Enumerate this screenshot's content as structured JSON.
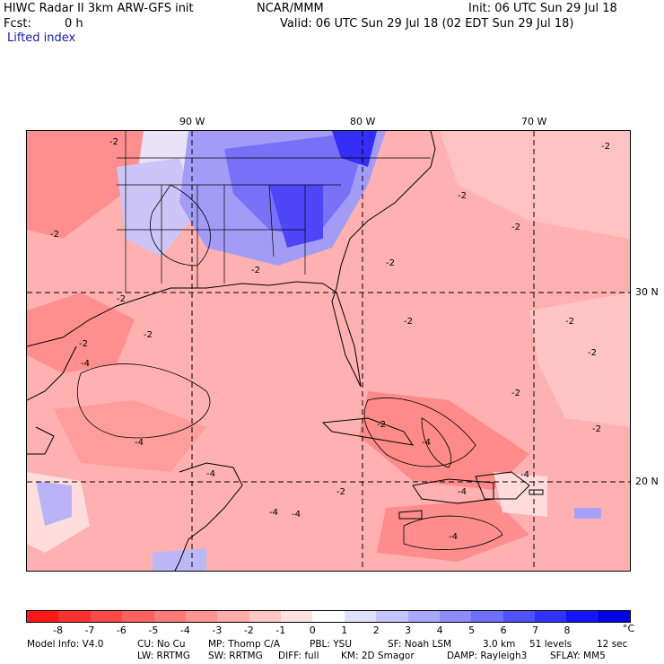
{
  "header": {
    "title": "HIWC Radar II 3km ARW-GFS init",
    "center": "NCAR/MMM",
    "init": "Init: 06 UTC Sun 29 Jul 18",
    "fcst_label": "Fcst:",
    "fcst_value": "0 h",
    "valid": "Valid: 06 UTC Sun 29 Jul 18 (02 EDT Sun 29 Jul 18)",
    "field": "Lifted index"
  },
  "axes": {
    "lon_labels": [
      "90 W",
      "80 W",
      "70 W"
    ],
    "lat_labels": [
      "30 N",
      "20 N"
    ]
  },
  "contour_labels": [
    "-2",
    "-4"
  ],
  "colorbar": {
    "ticks": [
      "-8",
      "-7",
      "-6",
      "-5",
      "-4",
      "-3",
      "-2",
      "-1",
      "0",
      "1",
      "2",
      "3",
      "4",
      "5",
      "6",
      "7",
      "8"
    ],
    "unit": "°C",
    "colors": [
      "#ff1a1a",
      "#ff3030",
      "#ff4a4a",
      "#ff6060",
      "#ff7a7a",
      "#ff9494",
      "#ffacac",
      "#ffc6c6",
      "#ffe2e2",
      "#ffffff",
      "#e0e0ff",
      "#c4c4ff",
      "#a8a8ff",
      "#8c8cff",
      "#6e6eff",
      "#5050ff",
      "#3232ff",
      "#1414ff",
      "#0000e6"
    ]
  },
  "footer": {
    "line1": [
      "Model Info: V4.0",
      "CU: No Cu",
      "MP: Thomp C/A",
      "PBL: YSU",
      "SF: Noah LSM",
      "3.0 km",
      "51 levels",
      "12 sec"
    ],
    "line2": [
      "LW: RRTMG",
      "SW: RRTMG",
      "DIFF: full",
      "KM: 2D Smagor",
      "DAMP: Rayleigh3",
      "SFLAY: MM5"
    ]
  }
}
